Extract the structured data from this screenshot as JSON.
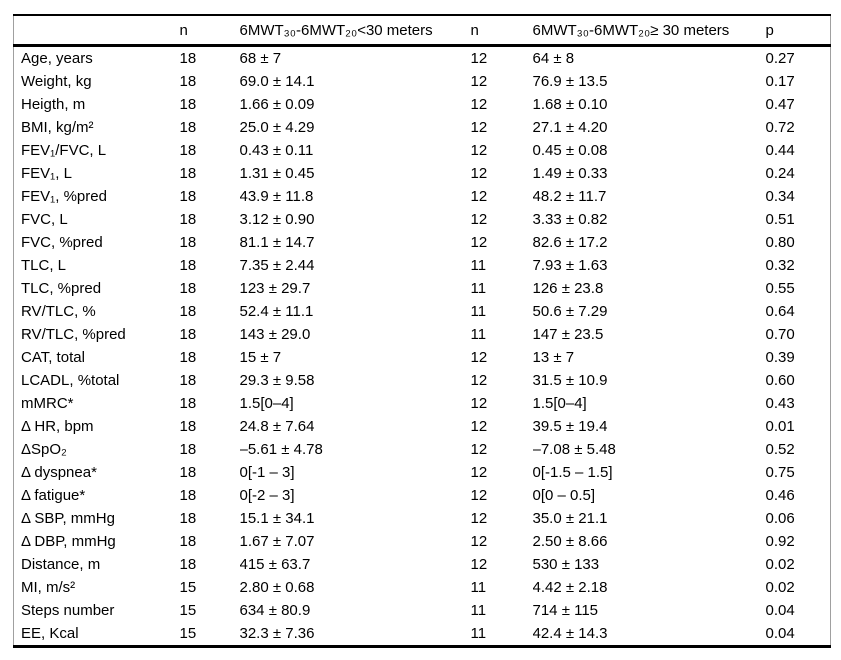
{
  "table": {
    "columns": [
      {
        "key": "label",
        "label": ""
      },
      {
        "key": "n1",
        "label": "n"
      },
      {
        "key": "v1",
        "label": "6MWT₃₀-6MWT₂₀<30 meters"
      },
      {
        "key": "n2",
        "label": "n"
      },
      {
        "key": "v2",
        "label": "6MWT₃₀-6MWT₂₀≥ 30 meters"
      },
      {
        "key": "p",
        "label": "p"
      }
    ],
    "rows": [
      {
        "label": "Age, years",
        "n1": "18",
        "v1": "68 ± 7",
        "n2": "12",
        "v2": "64 ± 8",
        "p": "0.27"
      },
      {
        "label": "Weight, kg",
        "n1": "18",
        "v1": "69.0 ± 14.1",
        "n2": "12",
        "v2": "76.9 ± 13.5",
        "p": "0.17"
      },
      {
        "label": "Heigth, m",
        "n1": "18",
        "v1": "1.66 ± 0.09",
        "n2": "12",
        "v2": "1.68 ± 0.10",
        "p": "0.47"
      },
      {
        "label": "BMI, kg/m²",
        "n1": "18",
        "v1": "25.0 ± 4.29",
        "n2": "12",
        "v2": "27.1 ± 4.20",
        "p": "0.72"
      },
      {
        "label": "FEV₁/FVC, L",
        "n1": "18",
        "v1": "0.43 ± 0.11",
        "n2": "12",
        "v2": "0.45 ± 0.08",
        "p": "0.44"
      },
      {
        "label": "FEV₁, L",
        "n1": "18",
        "v1": "1.31 ± 0.45",
        "n2": "12",
        "v2": "1.49 ± 0.33",
        "p": "0.24"
      },
      {
        "label": "FEV₁, %pred",
        "n1": "18",
        "v1": "43.9 ± 11.8",
        "n2": "12",
        "v2": "48.2 ± 11.7",
        "p": "0.34"
      },
      {
        "label": "FVC, L",
        "n1": "18",
        "v1": "3.12 ± 0.90",
        "n2": "12",
        "v2": "3.33 ± 0.82",
        "p": "0.51"
      },
      {
        "label": "FVC, %pred",
        "n1": "18",
        "v1": "81.1 ± 14.7",
        "n2": "12",
        "v2": "82.6 ± 17.2",
        "p": "0.80"
      },
      {
        "label": "TLC, L",
        "n1": "18",
        "v1": "7.35 ± 2.44",
        "n2": "11",
        "v2": "7.93 ± 1.63",
        "p": "0.32"
      },
      {
        "label": "TLC, %pred",
        "n1": "18",
        "v1": "123 ± 29.7",
        "n2": "11",
        "v2": "126 ± 23.8",
        "p": "0.55"
      },
      {
        "label": "RV/TLC, %",
        "n1": "18",
        "v1": "52.4 ± 11.1",
        "n2": "11",
        "v2": "50.6 ± 7.29",
        "p": "0.64"
      },
      {
        "label": "RV/TLC, %pred",
        "n1": "18",
        "v1": "143 ± 29.0",
        "n2": "11",
        "v2": "147 ± 23.5",
        "p": "0.70"
      },
      {
        "label": "CAT, total",
        "n1": "18",
        "v1": "15 ± 7",
        "n2": "12",
        "v2": "13 ± 7",
        "p": "0.39"
      },
      {
        "label": "LCADL, %total",
        "n1": "18",
        "v1": "29.3 ± 9.58",
        "n2": "12",
        "v2": "31.5 ± 10.9",
        "p": "0.60"
      },
      {
        "label": "mMRC*",
        "n1": "18",
        "v1": "1.5[0–4]",
        "n2": "12",
        "v2": "1.5[0–4]",
        "p": "0.43"
      },
      {
        "label": "Δ HR, bpm",
        "n1": "18",
        "v1": "24.8 ± 7.64",
        "n2": "12",
        "v2": "39.5 ± 19.4",
        "p": "0.01"
      },
      {
        "label": "ΔSpO₂",
        "n1": "18",
        "v1": "–5.61 ± 4.78",
        "n2": "12",
        "v2": "–7.08 ± 5.48",
        "p": "0.52"
      },
      {
        "label": "Δ dyspnea*",
        "n1": "18",
        "v1": "0[-1 – 3]",
        "n2": "12",
        "v2": "0[-1.5 – 1.5]",
        "p": "0.75"
      },
      {
        "label": "Δ fatigue*",
        "n1": "18",
        "v1": "0[-2 – 3]",
        "n2": "12",
        "v2": "0[0 – 0.5]",
        "p": "0.46"
      },
      {
        "label": "Δ SBP, mmHg",
        "n1": "18",
        "v1": "15.1 ± 34.1",
        "n2": "12",
        "v2": "35.0 ± 21.1",
        "p": "0.06"
      },
      {
        "label": "Δ DBP, mmHg",
        "n1": "18",
        "v1": "1.67 ± 7.07",
        "n2": "12",
        "v2": "2.50 ± 8.66",
        "p": "0.92"
      },
      {
        "label": "Distance, m",
        "n1": "18",
        "v1": "415 ± 63.7",
        "n2": "12",
        "v2": "530 ± 133",
        "p": "0.02"
      },
      {
        "label": "MI, m/s²",
        "n1": "15",
        "v1": "2.80 ± 0.68",
        "n2": "11",
        "v2": "4.42 ± 2.18",
        "p": "0.02"
      },
      {
        "label": "Steps number",
        "n1": "15",
        "v1": "634 ± 80.9",
        "n2": "11",
        "v2": "714 ± 115",
        "p": "0.04"
      },
      {
        "label": "EE, Kcal",
        "n1": "15",
        "v1": "32.3 ± 7.36",
        "n2": "11",
        "v2": "42.4 ± 14.3",
        "p": "0.04"
      }
    ],
    "colors": {
      "text": "#000000",
      "rule": "#000000",
      "side_rule": "#a0a0a0",
      "background": "#ffffff"
    }
  }
}
